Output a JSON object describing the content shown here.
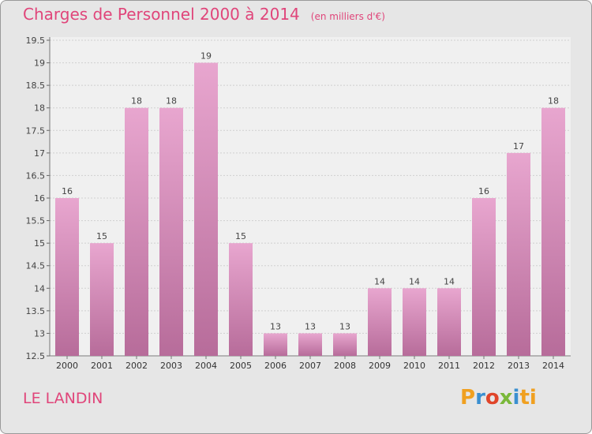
{
  "title": "Charges de Personnel 2000 à 2014",
  "subtitle": "(en milliers d'€)",
  "commune": "LE LANDIN",
  "logo": [
    "P",
    "r",
    "o",
    "x",
    "i",
    "ti"
  ],
  "colors": {
    "bar_top": "#e8a6cf",
    "bar_bottom": "#b76c9a",
    "accent": "#e0457a"
  },
  "chart_data": {
    "type": "bar",
    "categories": [
      "2000",
      "2001",
      "2002",
      "2003",
      "2004",
      "2005",
      "2006",
      "2007",
      "2008",
      "2009",
      "2010",
      "2011",
      "2012",
      "2013",
      "2014"
    ],
    "values": [
      16,
      15,
      18,
      18,
      19,
      15,
      13,
      13,
      13,
      14,
      14,
      14,
      16,
      17,
      18
    ],
    "ylim": [
      12.5,
      19.5
    ],
    "yticks": [
      "12.5",
      "13",
      "13.5",
      "14",
      "14.5",
      "15",
      "15.5",
      "16",
      "16.5",
      "17",
      "17.5",
      "18",
      "18.5",
      "19",
      "19.5"
    ],
    "grid": true
  }
}
